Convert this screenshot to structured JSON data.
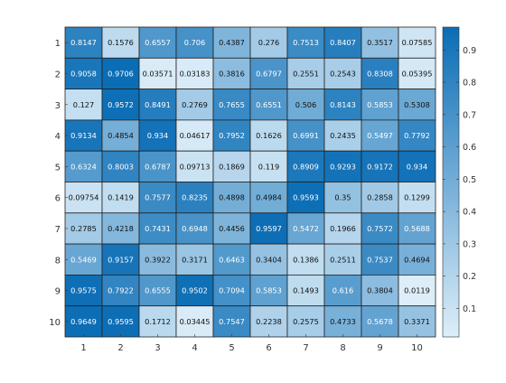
{
  "chart_data": {
    "type": "heatmap",
    "title": "",
    "xlabel": "",
    "ylabel": "",
    "x_categories": [
      "1",
      "2",
      "3",
      "4",
      "5",
      "6",
      "7",
      "8",
      "9",
      "10"
    ],
    "y_categories": [
      "1",
      "2",
      "3",
      "4",
      "5",
      "6",
      "7",
      "8",
      "9",
      "10"
    ],
    "values": [
      [
        0.8147,
        0.1576,
        0.6557,
        0.706,
        0.4387,
        0.276,
        0.7513,
        0.8407,
        0.3517,
        0.07585
      ],
      [
        0.9058,
        0.9706,
        0.03571,
        0.03183,
        0.3816,
        0.6797,
        0.2551,
        0.2543,
        0.8308,
        0.05395
      ],
      [
        0.127,
        0.9572,
        0.8491,
        0.2769,
        0.7655,
        0.6551,
        0.506,
        0.8143,
        0.5853,
        0.5308
      ],
      [
        0.9134,
        0.4854,
        0.934,
        0.04617,
        0.7952,
        0.1626,
        0.6991,
        0.2435,
        0.5497,
        0.7792
      ],
      [
        0.6324,
        0.8003,
        0.6787,
        0.09713,
        0.1869,
        0.119,
        0.8909,
        0.9293,
        0.9172,
        0.934
      ],
      [
        0.09754,
        0.1419,
        0.7577,
        0.8235,
        0.4898,
        0.4984,
        0.9593,
        0.35,
        0.2858,
        0.1299
      ],
      [
        0.2785,
        0.4218,
        0.7431,
        0.6948,
        0.4456,
        0.9597,
        0.5472,
        0.1966,
        0.7572,
        0.5688
      ],
      [
        0.5469,
        0.9157,
        0.3922,
        0.3171,
        0.6463,
        0.3404,
        0.1386,
        0.2511,
        0.7537,
        0.4694
      ],
      [
        0.9575,
        0.7922,
        0.6555,
        0.9502,
        0.7094,
        0.5853,
        0.1493,
        0.616,
        0.3804,
        0.0119
      ],
      [
        0.9649,
        0.9595,
        0.1712,
        0.03445,
        0.7547,
        0.2238,
        0.2575,
        0.4733,
        0.5678,
        0.3371
      ]
    ],
    "value_labels": [
      [
        "0.8147",
        "0.1576",
        "0.6557",
        "0.706",
        "0.4387",
        "0.276",
        "0.7513",
        "0.8407",
        "0.3517",
        "0.07585"
      ],
      [
        "0.9058",
        "0.9706",
        "0.03571",
        "0.03183",
        "0.3816",
        "0.6797",
        "0.2551",
        "0.2543",
        "0.8308",
        "0.05395"
      ],
      [
        "0.127",
        "0.9572",
        "0.8491",
        "0.2769",
        "0.7655",
        "0.6551",
        "0.506",
        "0.8143",
        "0.5853",
        "0.5308"
      ],
      [
        "0.9134",
        "0.4854",
        "0.934",
        "0.04617",
        "0.7952",
        "0.1626",
        "0.6991",
        "0.2435",
        "0.5497",
        "0.7792"
      ],
      [
        "0.6324",
        "0.8003",
        "0.6787",
        "0.09713",
        "0.1869",
        "0.119",
        "0.8909",
        "0.9293",
        "0.9172",
        "0.934"
      ],
      [
        "0.09754",
        "0.1419",
        "0.7577",
        "0.8235",
        "0.4898",
        "0.4984",
        "0.9593",
        "0.35",
        "0.2858",
        "0.1299"
      ],
      [
        "0.2785",
        "0.4218",
        "0.7431",
        "0.6948",
        "0.4456",
        "0.9597",
        "0.5472",
        "0.1966",
        "0.7572",
        "0.5688"
      ],
      [
        "0.5469",
        "0.9157",
        "0.3922",
        "0.3171",
        "0.6463",
        "0.3404",
        "0.1386",
        "0.2511",
        "0.7537",
        "0.4694"
      ],
      [
        "0.9575",
        "0.7922",
        "0.6555",
        "0.9502",
        "0.7094",
        "0.5853",
        "0.1493",
        "0.616",
        "0.3804",
        "0.0119"
      ],
      [
        "0.9649",
        "0.9595",
        "0.1712",
        "0.03445",
        "0.7547",
        "0.2238",
        "0.2575",
        "0.4733",
        "0.5678",
        "0.3371"
      ]
    ],
    "color_range": [
      0.0119,
      0.9706
    ],
    "colormap": {
      "low": "#ddeef9",
      "high": "#0b6db5"
    },
    "colorbar": {
      "position": "right",
      "ticks": [
        0.1,
        0.2,
        0.3,
        0.4,
        0.5,
        0.6,
        0.7,
        0.8,
        0.9
      ],
      "tick_labels": [
        "0.1",
        "0.2",
        "0.3",
        "0.4",
        "0.5",
        "0.6",
        "0.7",
        "0.8",
        "0.9"
      ]
    },
    "grid": true,
    "colors": {
      "cell_border": "#222222",
      "text_on_light": "#111111",
      "text_on_dark": "#ffffff",
      "axis": "#333333"
    }
  }
}
